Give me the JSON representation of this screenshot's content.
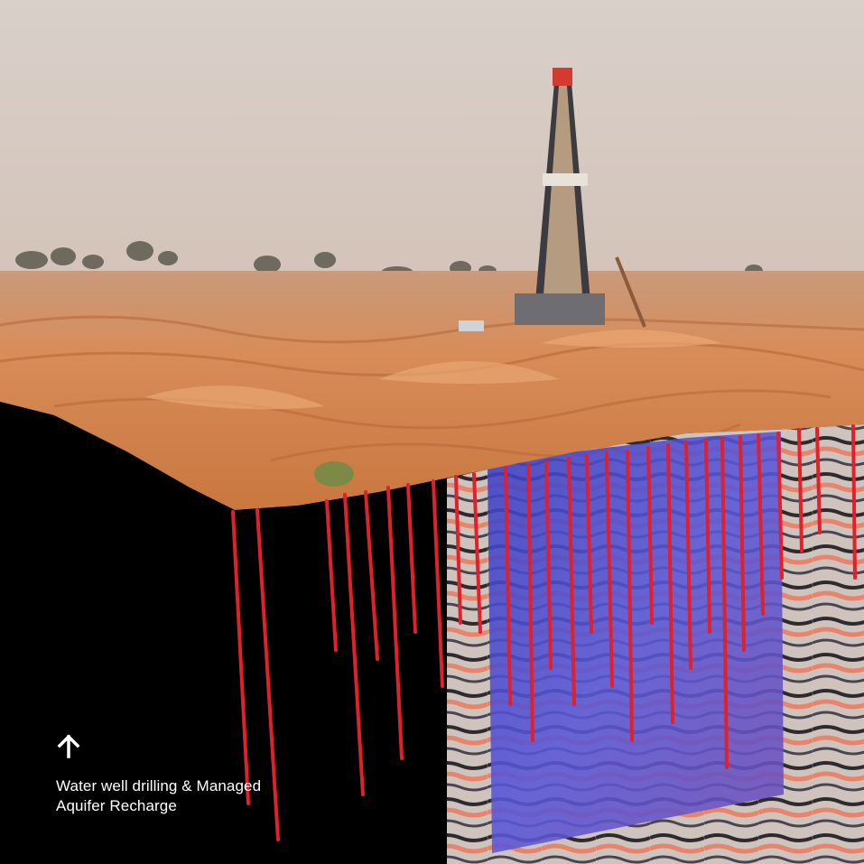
{
  "card": {
    "caption": "Water well drilling & Managed\nAquifer Recharge",
    "arrow_icon": "arrow-up-icon"
  },
  "colors": {
    "sky": "#d6cbc4",
    "sand": "#d98a55",
    "subsurface": "#000000",
    "well_line": "#e0202a",
    "volume_blue": "#4a4fd0",
    "caption_text": "#ffffff"
  }
}
